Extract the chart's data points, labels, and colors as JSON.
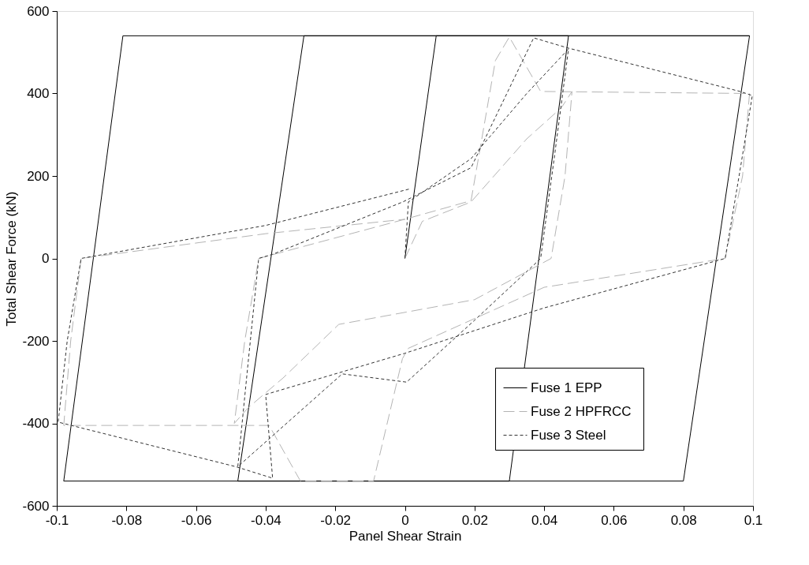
{
  "chart_data": {
    "type": "line",
    "xlabel": "Panel Shear Strain",
    "ylabel": "Total Shear Force (kN)",
    "xlim": [
      -0.1,
      0.1
    ],
    "xticks": [
      -0.1,
      -0.08,
      -0.06,
      -0.04,
      -0.02,
      0,
      0.02,
      0.04,
      0.06,
      0.08,
      0.1
    ],
    "ylim": [
      -600,
      600
    ],
    "yticks": [
      -600,
      -400,
      -200,
      0,
      200,
      400,
      600
    ],
    "grid": false,
    "legend": "bottom right",
    "marker": "none",
    "series": [
      {
        "name": "Fuse 1  EPP",
        "color": "#000000",
        "line_style": "solid",
        "x": [
          0,
          0.009,
          0.047,
          0.03,
          -0.048,
          -0.029,
          0.099,
          0.08,
          -0.098,
          -0.081,
          0.099
        ],
        "values": [
          0,
          540,
          540,
          -540,
          -540,
          540,
          540,
          -540,
          -540,
          540,
          540
        ]
      },
      {
        "name": "Fuse 2  HPFRCC",
        "color": "#b4b4b4",
        "line_style": "dashed",
        "x": [
          0,
          0.005,
          0.019,
          0.035,
          0.045,
          0.048,
          0.046,
          0.042,
          0.02,
          -0.019,
          -0.035,
          -0.045,
          -0.049,
          -0.046,
          -0.042,
          0,
          0.019,
          0.026,
          0.03,
          0.039,
          0.099,
          0.097,
          0.092,
          0.04,
          0.001,
          -0.0007,
          -0.009,
          -0.03,
          -0.039,
          -0.098,
          -0.096,
          -0.093,
          -0.04,
          0.0
        ],
        "values": [
          0,
          90,
          137,
          290,
          366,
          405,
          200,
          0,
          -100,
          -160,
          -290,
          -362,
          -400,
          -200,
          0,
          95,
          140,
          480,
          537,
          405,
          400,
          200,
          0,
          -70,
          -218,
          -243,
          -540,
          -540,
          -405,
          -405,
          -200,
          0,
          60,
          95
        ]
      },
      {
        "name": "Fuse 3  Steel",
        "color": "#333333",
        "line_style": "dotted",
        "x": [
          0,
          0.001,
          0.019,
          0.035,
          0.047,
          0.043,
          0.039,
          0.0355,
          0.02,
          0.0005,
          -0.018,
          -0.036,
          -0.048,
          -0.045,
          -0.042,
          -0.038,
          -0.0006,
          0.019,
          0.037,
          0.047,
          0.0963,
          0.0998,
          0.096,
          0.092,
          0.04,
          0.0,
          -0.04,
          -0.038,
          -0.0486,
          -0.0996,
          -0.097,
          -0.093,
          -0.04,
          0.0016
        ],
        "values": [
          0,
          137,
          242,
          400,
          508,
          250,
          0,
          -28,
          -150,
          -300,
          -280,
          -415,
          -505,
          -250,
          0,
          10,
          137,
          220,
          535,
          510,
          405,
          395,
          200,
          0,
          -120,
          -230,
          -330,
          -533,
          -505,
          -397,
          -200,
          0,
          80,
          169
        ]
      }
    ]
  }
}
